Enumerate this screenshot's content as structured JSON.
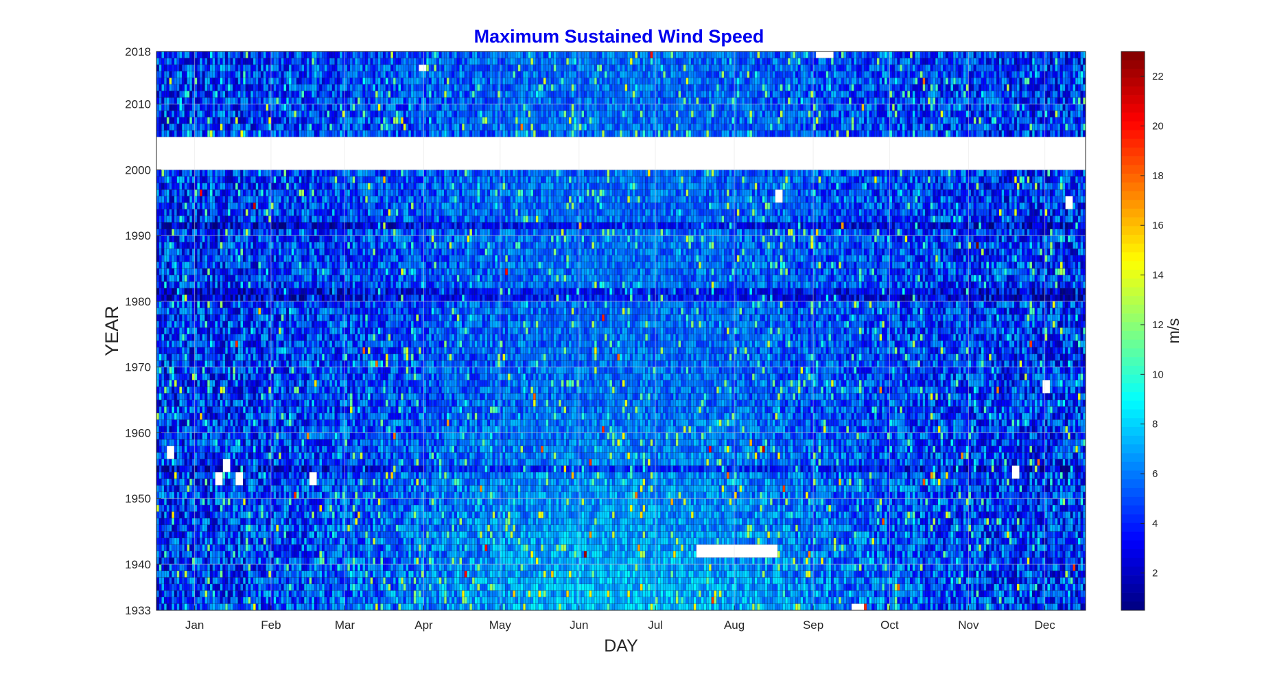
{
  "chart_data": {
    "type": "heatmap",
    "title": "Maximum Sustained Wind Speed",
    "xlabel": "DAY",
    "ylabel": "YEAR",
    "colorbar_label": "m/s",
    "title_color": "#0000ee",
    "colormap": "jet",
    "x_tick_labels": [
      "Jan",
      "Feb",
      "Mar",
      "Apr",
      "May",
      "Jun",
      "Jul",
      "Aug",
      "Sep",
      "Oct",
      "Nov",
      "Dec"
    ],
    "x_tick_days": [
      16,
      46,
      75,
      106,
      136,
      167,
      197,
      228,
      259,
      289,
      320,
      350
    ],
    "xlim": [
      1,
      366
    ],
    "y_tick_labels": [
      "1933",
      "1940",
      "1950",
      "1960",
      "1970",
      "1980",
      "1990",
      "2000",
      "2010",
      "2018"
    ],
    "y_tick_values": [
      1933,
      1940,
      1950,
      1960,
      1970,
      1980,
      1990,
      2000,
      2010,
      2018
    ],
    "ylim": [
      1933,
      2018
    ],
    "colorbar_ticks": [
      2,
      4,
      6,
      8,
      10,
      12,
      14,
      16,
      18,
      20,
      22
    ],
    "colorbar_range": [
      0.5,
      23
    ],
    "grid": true,
    "data_gaps": [
      {
        "years": [
          2000,
          2005
        ],
        "days": [
          1,
          366
        ]
      },
      {
        "years": [
          2017,
          2018
        ],
        "days": [
          260,
          266
        ]
      },
      {
        "years": [
          2015,
          2016
        ],
        "days": [
          104,
          106
        ]
      },
      {
        "years": [
          1941,
          1943
        ],
        "days": [
          213,
          244
        ]
      },
      {
        "years": [
          1933,
          1934
        ],
        "days": [
          274,
          278
        ]
      },
      {
        "years": [
          1995,
          1997
        ],
        "days": [
          244,
          246
        ]
      },
      {
        "years": [
          1994,
          1996
        ],
        "days": [
          358,
          360
        ]
      },
      {
        "years": [
          1966,
          1968
        ],
        "days": [
          349,
          351
        ]
      },
      {
        "years": [
          1956,
          1958
        ],
        "days": [
          5,
          7
        ]
      },
      {
        "years": [
          1952,
          1954
        ],
        "days": [
          24,
          26
        ]
      },
      {
        "years": [
          1954,
          1956
        ],
        "days": [
          27,
          29
        ]
      },
      {
        "years": [
          1952,
          1954
        ],
        "days": [
          32,
          34
        ]
      },
      {
        "years": [
          1952,
          1954
        ],
        "days": [
          61,
          63
        ]
      },
      {
        "years": [
          1953,
          1955
        ],
        "days": [
          337,
          339
        ]
      }
    ],
    "summary": {
      "typical_speed_range": [
        2,
        10
      ],
      "calm_rows_years": [
        1954,
        1980,
        1981,
        1991
      ],
      "windier_period_days": "Jul-Aug (1935-1960)",
      "max_observed": 23
    }
  }
}
